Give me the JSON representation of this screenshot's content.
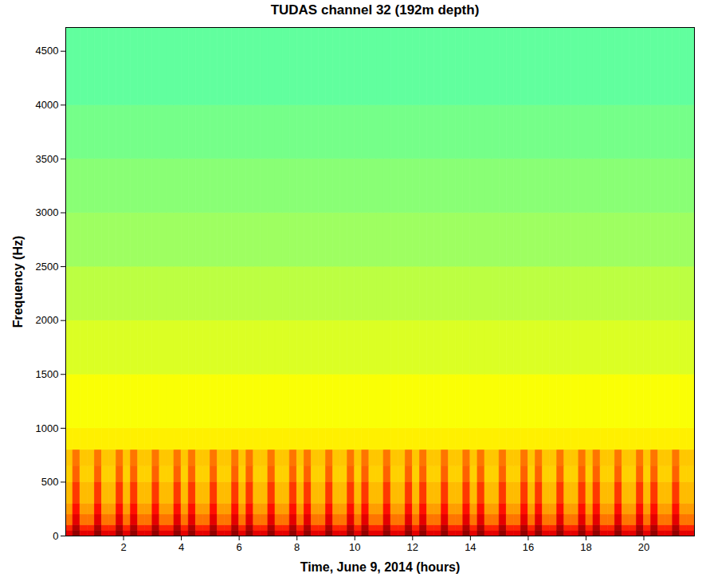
{
  "chart_data": {
    "type": "heatmap",
    "title": "TUDAS channel 32 (192m depth)",
    "x_label": "Time, June 9, 2014 (hours)",
    "y_label": "Frequency (Hz)",
    "xlim": [
      0,
      21.75
    ],
    "ylim": [
      0,
      4720
    ],
    "xticks": [
      2,
      4,
      6,
      8,
      10,
      12,
      14,
      16,
      18,
      20
    ],
    "yticks": [
      0,
      500,
      1000,
      1500,
      2000,
      2500,
      3000,
      3500,
      4000,
      4500
    ],
    "color_range": [
      0,
      10
    ],
    "x_bins": [
      0,
      0.25,
      0.5,
      0.75,
      1,
      1.25,
      1.5,
      1.75,
      2,
      2.25,
      2.5,
      2.75,
      3,
      3.25,
      3.5,
      3.75,
      4,
      4.25,
      4.5,
      4.75,
      5,
      5.25,
      5.5,
      5.75,
      6,
      6.25,
      6.5,
      6.75,
      7,
      7.25,
      7.5,
      7.75,
      8,
      8.25,
      8.5,
      8.75,
      9,
      9.25,
      9.5,
      9.75,
      10,
      10.25,
      10.5,
      10.75,
      11,
      11.25,
      11.5,
      11.75,
      12,
      12.25,
      12.5,
      12.75,
      13,
      13.25,
      13.5,
      13.75,
      14,
      14.25,
      14.5,
      14.75,
      15,
      15.25,
      15.5,
      15.75,
      16,
      16.25,
      16.5,
      16.75,
      17,
      17.25,
      17.5,
      17.75,
      18,
      18.25,
      18.5,
      18.75,
      19,
      19.25,
      19.5,
      19.75,
      20,
      20.25,
      20.5,
      20.75,
      21,
      21.25,
      21.5,
      21.75
    ],
    "y_bins": [
      0,
      50,
      100,
      200,
      300,
      500,
      650,
      800,
      1000,
      1500,
      2000,
      2500,
      3000,
      3500,
      4000,
      4720
    ],
    "cells": [
      [
        9.0,
        9.8,
        9.0,
        9.0,
        9.8,
        9.0,
        9.0,
        9.8,
        9.0,
        9.8,
        9.0,
        9.0,
        9.8,
        9.0,
        9.0,
        9.8,
        9.0,
        9.8,
        9.0,
        9.0,
        9.8,
        9.0,
        9.0,
        9.8,
        9.0,
        9.8,
        9.0,
        9.0,
        9.8,
        9.0,
        9.0,
        9.8,
        9.0,
        9.8,
        9.0,
        9.0,
        9.8,
        9.0,
        9.0,
        9.8,
        9.0,
        9.8,
        9.0,
        9.0,
        9.8,
        9.0,
        9.0,
        9.8,
        9.0,
        9.8,
        9.0,
        9.0,
        9.8,
        9.0,
        9.0,
        9.8,
        9.0,
        9.8,
        9.0,
        9.0,
        9.8,
        9.0,
        9.0,
        9.8,
        9.0,
        9.8,
        9.0,
        9.0,
        9.8,
        9.0,
        9.0,
        9.8,
        9.0,
        9.8,
        9.0,
        9.0,
        9.8,
        9.0,
        9.0,
        9.8,
        9.0,
        9.8,
        9.0,
        9.0,
        9.8,
        9.0,
        9.0
      ],
      [
        8.4,
        9.5,
        8.4,
        8.4,
        9.5,
        8.4,
        8.4,
        9.5,
        8.4,
        9.5,
        8.4,
        8.4,
        9.5,
        8.4,
        8.4,
        9.5,
        8.4,
        9.5,
        8.4,
        8.4,
        9.5,
        8.4,
        8.4,
        9.5,
        8.4,
        9.5,
        8.4,
        8.4,
        9.5,
        8.4,
        8.4,
        9.5,
        8.4,
        9.5,
        8.4,
        8.4,
        9.5,
        8.4,
        8.4,
        9.5,
        8.4,
        9.5,
        8.4,
        8.4,
        9.5,
        8.4,
        8.4,
        9.5,
        8.4,
        9.5,
        8.4,
        8.4,
        9.5,
        8.4,
        8.4,
        9.5,
        8.4,
        9.5,
        8.4,
        8.4,
        9.5,
        8.4,
        8.4,
        9.5,
        8.4,
        9.5,
        8.4,
        8.4,
        9.5,
        8.4,
        8.4,
        9.5,
        8.4,
        9.5,
        8.4,
        8.4,
        9.5,
        8.4,
        8.4,
        9.5,
        8.4,
        9.5,
        8.4,
        8.4,
        9.5,
        8.4,
        8.4
      ],
      [
        7.6,
        9.0,
        7.6,
        7.6,
        9.0,
        7.6,
        7.6,
        9.0,
        7.6,
        9.0,
        7.6,
        7.6,
        9.0,
        7.6,
        7.6,
        9.0,
        7.6,
        9.0,
        7.6,
        7.6,
        9.0,
        7.6,
        7.6,
        9.0,
        7.6,
        9.0,
        7.6,
        7.6,
        9.0,
        7.6,
        7.6,
        9.0,
        7.6,
        9.0,
        7.6,
        7.6,
        9.0,
        7.6,
        7.6,
        9.0,
        7.6,
        9.0,
        7.6,
        7.6,
        9.0,
        7.6,
        7.6,
        9.0,
        7.6,
        9.0,
        7.6,
        7.6,
        9.0,
        7.6,
        7.6,
        9.0,
        7.6,
        9.0,
        7.6,
        7.6,
        9.0,
        7.6,
        7.6,
        9.0,
        7.6,
        9.0,
        7.6,
        7.6,
        9.0,
        7.6,
        7.6,
        9.0,
        7.6,
        9.0,
        7.6,
        7.6,
        9.0,
        7.6,
        7.6,
        9.0,
        7.6,
        9.0,
        7.6,
        7.6,
        9.0,
        7.6,
        7.6
      ],
      [
        7.2,
        8.6,
        7.2,
        7.2,
        8.6,
        7.2,
        7.2,
        8.6,
        7.2,
        8.6,
        7.2,
        7.2,
        8.6,
        7.2,
        7.2,
        8.6,
        7.2,
        8.6,
        7.2,
        7.2,
        8.6,
        7.2,
        7.2,
        8.6,
        7.2,
        8.6,
        7.2,
        7.2,
        8.6,
        7.2,
        7.2,
        8.6,
        7.2,
        8.6,
        7.2,
        7.2,
        8.6,
        7.2,
        7.2,
        8.6,
        7.2,
        8.6,
        7.2,
        7.2,
        8.6,
        7.2,
        7.2,
        8.6,
        7.2,
        8.6,
        7.2,
        7.2,
        8.6,
        7.2,
        7.2,
        8.6,
        7.2,
        8.6,
        7.2,
        7.2,
        8.6,
        7.2,
        7.2,
        8.6,
        7.2,
        8.6,
        7.2,
        7.2,
        8.6,
        7.2,
        7.2,
        8.6,
        7.2,
        8.6,
        7.2,
        7.2,
        8.6,
        7.2,
        7.2,
        8.6,
        7.2,
        8.6,
        7.2,
        7.2,
        8.6,
        7.2,
        7.2
      ],
      [
        6.9,
        8.2,
        6.9,
        6.9,
        8.2,
        6.9,
        6.9,
        8.2,
        6.9,
        8.2,
        6.9,
        6.9,
        8.2,
        6.9,
        6.9,
        8.2,
        6.9,
        8.2,
        6.9,
        6.9,
        8.2,
        6.9,
        6.9,
        8.2,
        6.9,
        8.2,
        6.9,
        6.9,
        8.2,
        6.9,
        6.9,
        8.2,
        6.9,
        8.2,
        6.9,
        6.9,
        8.2,
        6.9,
        6.9,
        8.2,
        6.9,
        8.2,
        6.9,
        6.9,
        8.2,
        6.9,
        6.9,
        8.2,
        6.9,
        8.2,
        6.9,
        6.9,
        8.2,
        6.9,
        6.9,
        8.2,
        6.9,
        8.2,
        6.9,
        6.9,
        8.2,
        6.9,
        6.9,
        8.2,
        6.9,
        8.2,
        6.9,
        6.9,
        8.2,
        6.9,
        6.9,
        8.2,
        6.9,
        8.2,
        6.9,
        6.9,
        8.2,
        6.9,
        6.9,
        8.2,
        6.9,
        8.2,
        6.9,
        6.9,
        8.2,
        6.9,
        6.9
      ],
      [
        6.7,
        7.8,
        6.7,
        6.7,
        7.8,
        6.7,
        6.7,
        7.8,
        6.7,
        7.8,
        6.7,
        6.7,
        7.8,
        6.7,
        6.7,
        7.8,
        6.7,
        7.8,
        6.7,
        6.7,
        7.8,
        6.7,
        6.7,
        7.8,
        6.7,
        7.8,
        6.7,
        6.7,
        7.8,
        6.7,
        6.7,
        7.8,
        6.7,
        7.8,
        6.7,
        6.7,
        7.8,
        6.7,
        6.7,
        7.8,
        6.7,
        7.8,
        6.7,
        6.7,
        7.8,
        6.7,
        6.7,
        7.8,
        6.7,
        7.8,
        6.7,
        6.7,
        7.8,
        6.7,
        6.7,
        7.8,
        6.7,
        7.8,
        6.7,
        6.7,
        7.8,
        6.7,
        6.7,
        7.8,
        6.7,
        7.8,
        6.7,
        6.7,
        7.8,
        6.7,
        6.7,
        7.8,
        6.7,
        7.8,
        6.7,
        6.7,
        7.8,
        6.7,
        6.7,
        7.8,
        6.7,
        7.8,
        6.7,
        6.7,
        7.8,
        6.7,
        6.7
      ],
      [
        6.8,
        7.6,
        6.8,
        6.8,
        7.6,
        6.8,
        6.8,
        7.6,
        6.8,
        7.6,
        6.8,
        6.8,
        7.6,
        6.8,
        6.8,
        7.6,
        6.8,
        7.6,
        6.8,
        6.8,
        7.6,
        6.8,
        6.8,
        7.6,
        6.8,
        7.6,
        6.8,
        6.8,
        7.6,
        6.8,
        6.8,
        7.6,
        6.8,
        7.6,
        6.8,
        6.8,
        7.6,
        6.8,
        6.8,
        7.6,
        6.8,
        7.6,
        6.8,
        6.8,
        7.6,
        6.8,
        6.8,
        7.6,
        6.8,
        7.6,
        6.8,
        6.8,
        7.6,
        6.8,
        6.8,
        7.6,
        6.8,
        7.6,
        6.8,
        6.8,
        7.6,
        6.8,
        6.8,
        7.6,
        6.8,
        7.6,
        6.8,
        6.8,
        7.6,
        6.8,
        6.8,
        7.6,
        6.8,
        7.6,
        6.8,
        6.8,
        7.6,
        6.8,
        6.8,
        7.6,
        6.8,
        7.6,
        6.8,
        6.8,
        7.6,
        6.8,
        6.8
      ],
      [
        6.4,
        6.4,
        6.4,
        6.4,
        6.4,
        6.4,
        6.4,
        6.4,
        6.4,
        6.4,
        6.4,
        6.4,
        6.4,
        6.4,
        6.4,
        6.4,
        6.4,
        6.4,
        6.4,
        6.4,
        6.4,
        6.4,
        6.4,
        6.4,
        6.4,
        6.4,
        6.4,
        6.4,
        6.4,
        6.4,
        6.4,
        6.4,
        6.4,
        6.4,
        6.4,
        6.4,
        6.4,
        6.4,
        6.4,
        6.4,
        6.4,
        6.4,
        6.4,
        6.4,
        6.4,
        6.4,
        6.4,
        6.4,
        6.4,
        6.4,
        6.4,
        6.4,
        6.4,
        6.4,
        6.4,
        6.4,
        6.4,
        6.4,
        6.4,
        6.4,
        6.4,
        6.4,
        6.4,
        6.4,
        6.4,
        6.4,
        6.4,
        6.4,
        6.4,
        6.4,
        6.4,
        6.4,
        6.4,
        6.4,
        6.4,
        6.4,
        6.4,
        6.4,
        6.4,
        6.4,
        6.4,
        6.4,
        6.4,
        6.4,
        6.4,
        6.4,
        6.4
      ],
      [
        6.2,
        6.2,
        6.2,
        6.2,
        6.2,
        6.2,
        6.2,
        6.2,
        6.2,
        6.2,
        6.2,
        6.2,
        6.2,
        6.2,
        6.2,
        6.2,
        6.2,
        6.2,
        6.2,
        6.2,
        6.2,
        6.2,
        6.2,
        6.2,
        6.2,
        6.2,
        6.2,
        6.2,
        6.2,
        6.2,
        6.2,
        6.2,
        6.2,
        6.2,
        6.2,
        6.2,
        6.2,
        6.2,
        6.2,
        6.2,
        6.2,
        6.2,
        6.2,
        6.2,
        6.2,
        6.2,
        6.2,
        6.2,
        6.2,
        6.2,
        6.2,
        6.2,
        6.2,
        6.2,
        6.2,
        6.2,
        6.2,
        6.2,
        6.2,
        6.2,
        6.2,
        6.2,
        6.2,
        6.2,
        6.2,
        6.2,
        6.2,
        6.2,
        6.2,
        6.2,
        6.2,
        6.2,
        6.2,
        6.2,
        6.2,
        6.2,
        6.2,
        6.2,
        6.2,
        6.2,
        6.2,
        6.2,
        6.2,
        6.2,
        6.2,
        6.2,
        6.2
      ],
      [
        5.9,
        5.9,
        5.9,
        5.9,
        5.9,
        5.9,
        5.9,
        5.9,
        5.9,
        5.9,
        5.9,
        5.9,
        5.9,
        5.9,
        5.9,
        5.9,
        5.9,
        5.9,
        5.9,
        5.9,
        5.9,
        5.9,
        5.9,
        5.9,
        5.9,
        5.9,
        5.9,
        5.9,
        5.9,
        5.9,
        5.9,
        5.9,
        5.9,
        5.9,
        5.9,
        5.9,
        5.9,
        5.9,
        5.9,
        5.9,
        5.9,
        5.9,
        5.9,
        5.9,
        5.9,
        5.9,
        5.9,
        5.9,
        5.9,
        5.9,
        5.9,
        5.9,
        5.9,
        5.9,
        5.9,
        5.9,
        5.9,
        5.9,
        5.9,
        5.9,
        5.9,
        5.9,
        5.9,
        5.9,
        5.9,
        5.9,
        5.9,
        5.9,
        5.9,
        5.9,
        5.9,
        5.9,
        5.9,
        5.9,
        5.9,
        5.9,
        5.9,
        5.9,
        5.9,
        5.9,
        5.9,
        5.9,
        5.9,
        5.9,
        5.9,
        5.9,
        5.9
      ],
      [
        5.6,
        5.6,
        5.6,
        5.6,
        5.6,
        5.6,
        5.6,
        5.6,
        5.6,
        5.6,
        5.6,
        5.6,
        5.6,
        5.6,
        5.6,
        5.6,
        5.6,
        5.6,
        5.6,
        5.6,
        5.6,
        5.6,
        5.6,
        5.6,
        5.6,
        5.6,
        5.6,
        5.6,
        5.6,
        5.6,
        5.6,
        5.6,
        5.6,
        5.6,
        5.6,
        5.6,
        5.6,
        5.6,
        5.6,
        5.6,
        5.6,
        5.6,
        5.6,
        5.6,
        5.6,
        5.6,
        5.6,
        5.6,
        5.6,
        5.6,
        5.6,
        5.6,
        5.6,
        5.6,
        5.6,
        5.6,
        5.6,
        5.6,
        5.6,
        5.6,
        5.6,
        5.6,
        5.6,
        5.6,
        5.6,
        5.6,
        5.6,
        5.6,
        5.6,
        5.6,
        5.6,
        5.6,
        5.6,
        5.6,
        5.6,
        5.6,
        5.6,
        5.6,
        5.6,
        5.6,
        5.6,
        5.6,
        5.6,
        5.6,
        5.6,
        5.6,
        5.6
      ],
      [
        5.3,
        5.3,
        5.3,
        5.3,
        5.3,
        5.3,
        5.3,
        5.3,
        5.3,
        5.3,
        5.3,
        5.3,
        5.3,
        5.3,
        5.3,
        5.3,
        5.3,
        5.3,
        5.3,
        5.3,
        5.3,
        5.3,
        5.3,
        5.3,
        5.3,
        5.3,
        5.3,
        5.3,
        5.3,
        5.3,
        5.3,
        5.3,
        5.3,
        5.3,
        5.3,
        5.3,
        5.3,
        5.3,
        5.3,
        5.3,
        5.3,
        5.3,
        5.3,
        5.3,
        5.3,
        5.3,
        5.3,
        5.3,
        5.3,
        5.3,
        5.3,
        5.3,
        5.3,
        5.3,
        5.3,
        5.3,
        5.3,
        5.3,
        5.3,
        5.3,
        5.3,
        5.3,
        5.3,
        5.3,
        5.3,
        5.3,
        5.3,
        5.3,
        5.3,
        5.3,
        5.3,
        5.3,
        5.3,
        5.3,
        5.3,
        5.3,
        5.3,
        5.3,
        5.3,
        5.3,
        5.3,
        5.3,
        5.3,
        5.3,
        5.3,
        5.3,
        5.3
      ],
      [
        5.1,
        5.1,
        5.1,
        5.1,
        5.1,
        5.1,
        5.1,
        5.1,
        5.1,
        5.1,
        5.1,
        5.1,
        5.1,
        5.1,
        5.1,
        5.1,
        5.1,
        5.1,
        5.1,
        5.1,
        5.1,
        5.1,
        5.1,
        5.1,
        5.1,
        5.1,
        5.1,
        5.1,
        5.1,
        5.1,
        5.1,
        5.1,
        5.1,
        5.1,
        5.1,
        5.1,
        5.1,
        5.1,
        5.1,
        5.1,
        5.1,
        5.1,
        5.1,
        5.1,
        5.1,
        5.1,
        5.1,
        5.1,
        5.1,
        5.1,
        5.1,
        5.1,
        5.1,
        5.1,
        5.1,
        5.1,
        5.1,
        5.1,
        5.1,
        5.1,
        5.1,
        5.1,
        5.1,
        5.1,
        5.1,
        5.1,
        5.1,
        5.1,
        5.1,
        5.1,
        5.1,
        5.1,
        5.1,
        5.1,
        5.1,
        5.1,
        5.1,
        5.1,
        5.1,
        5.1,
        5.1,
        5.1,
        5.1,
        5.1,
        5.1,
        5.1,
        5.1
      ],
      [
        4.9,
        4.9,
        4.9,
        4.9,
        4.9,
        4.9,
        4.9,
        4.9,
        4.9,
        4.9,
        4.9,
        4.9,
        4.9,
        4.9,
        4.9,
        4.9,
        4.9,
        4.9,
        4.9,
        4.9,
        4.9,
        4.9,
        4.9,
        4.9,
        4.9,
        4.9,
        4.9,
        4.9,
        4.9,
        4.9,
        4.9,
        4.9,
        4.9,
        4.9,
        4.9,
        4.9,
        4.9,
        4.9,
        4.9,
        4.9,
        4.9,
        4.9,
        4.9,
        4.9,
        4.9,
        4.9,
        4.9,
        4.9,
        4.9,
        4.9,
        4.9,
        4.9,
        4.9,
        4.9,
        4.9,
        4.9,
        4.9,
        4.9,
        4.9,
        4.9,
        4.9,
        4.9,
        4.9,
        4.9,
        4.9,
        4.9,
        4.9,
        4.9,
        4.9,
        4.9,
        4.9,
        4.9,
        4.9,
        4.9,
        4.9,
        4.9,
        4.9,
        4.9,
        4.9,
        4.9,
        4.9,
        4.9,
        4.9,
        4.9,
        4.9,
        4.9,
        4.9
      ],
      [
        4.7,
        4.7,
        4.7,
        4.7,
        4.7,
        4.7,
        4.7,
        4.7,
        4.7,
        4.7,
        4.7,
        4.7,
        4.7,
        4.7,
        4.7,
        4.7,
        4.7,
        4.7,
        4.7,
        4.7,
        4.7,
        4.7,
        4.7,
        4.7,
        4.7,
        4.7,
        4.7,
        4.7,
        4.7,
        4.7,
        4.7,
        4.7,
        4.7,
        4.7,
        4.7,
        4.7,
        4.7,
        4.7,
        4.7,
        4.7,
        4.7,
        4.7,
        4.7,
        4.7,
        4.7,
        4.7,
        4.7,
        4.7,
        4.7,
        4.7,
        4.7,
        4.7,
        4.7,
        4.7,
        4.7,
        4.7,
        4.7,
        4.7,
        4.7,
        4.7,
        4.7,
        4.7,
        4.7,
        4.7,
        4.7,
        4.7,
        4.7,
        4.7,
        4.7,
        4.7,
        4.7,
        4.7,
        4.7,
        4.7,
        4.7,
        4.7,
        4.7,
        4.7,
        4.7,
        4.7,
        4.7,
        4.7,
        4.7,
        4.7,
        4.7,
        4.7,
        4.7
      ]
    ]
  }
}
